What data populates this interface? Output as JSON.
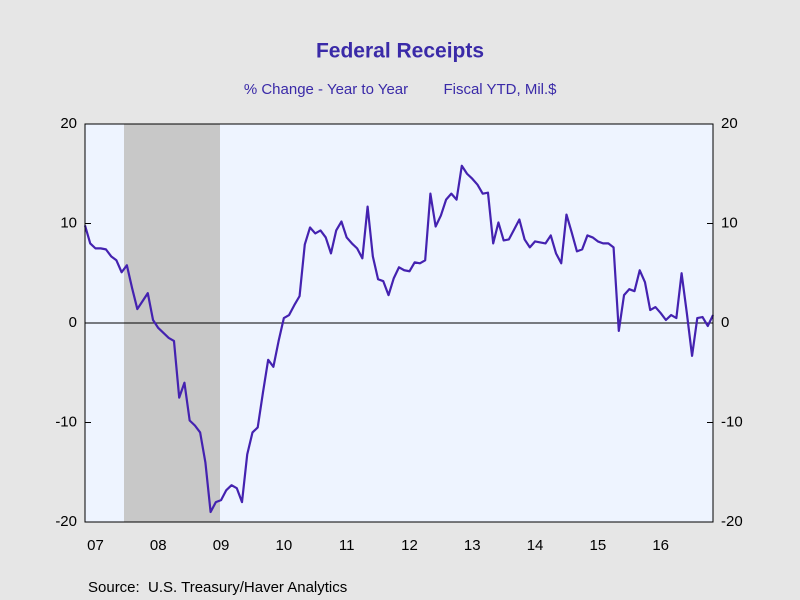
{
  "chart_data": {
    "type": "line",
    "title": "Federal Receipts",
    "subtitle": "% Change - Year to Year",
    "units": "Fiscal YTD, Mil.$",
    "source": "Source:  U.S. Treasury/Haver Analytics",
    "categories": [
      null,
      null,
      "07",
      null,
      null,
      null,
      null,
      null,
      null,
      null,
      null,
      null,
      null,
      null,
      "08",
      null,
      null,
      null,
      null,
      null,
      null,
      null,
      null,
      null,
      null,
      null,
      "09",
      null,
      null,
      null,
      null,
      null,
      null,
      null,
      null,
      null,
      null,
      null,
      "10",
      null,
      null,
      null,
      null,
      null,
      null,
      null,
      null,
      null,
      null,
      null,
      "11",
      null,
      null,
      null,
      null,
      null,
      null,
      null,
      null,
      null,
      null,
      null,
      "12",
      null,
      null,
      null,
      null,
      null,
      null,
      null,
      null,
      null,
      null,
      null,
      "13",
      null,
      null,
      null,
      null,
      null,
      null,
      null,
      null,
      null,
      null,
      null,
      "14",
      null,
      null,
      null,
      null,
      null,
      null,
      null,
      null,
      null,
      null,
      null,
      "15",
      null,
      null,
      null,
      null,
      null,
      null,
      null,
      null,
      null,
      null,
      null,
      "16",
      null,
      null,
      null,
      null,
      null,
      null,
      null,
      null,
      null,
      null
    ],
    "series": [
      {
        "color": "#4422b0",
        "values": [
          9.8,
          8.0,
          7.5,
          7.5,
          7.4,
          6.7,
          6.3,
          5.1,
          5.8,
          3.5,
          1.4,
          2.2,
          3.0,
          0.3,
          -0.5,
          -1.0,
          -1.5,
          -1.8,
          -7.5,
          -6.0,
          -9.8,
          -10.3,
          -11.0,
          -14.0,
          -19.0,
          -18.0,
          -17.8,
          -16.8,
          -16.3,
          -16.6,
          -18.0,
          -13.2,
          -11.0,
          -10.5,
          -7.0,
          -3.7,
          -4.4,
          -1.8,
          0.5,
          0.8,
          1.8,
          2.7,
          7.9,
          9.6,
          9.0,
          9.3,
          8.6,
          7.0,
          9.3,
          10.2,
          8.6,
          8.0,
          7.5,
          6.5,
          11.7,
          6.7,
          4.4,
          4.2,
          2.8,
          4.5,
          5.6,
          5.3,
          5.2,
          6.1,
          6.0,
          6.3,
          13.0,
          9.7,
          10.8,
          12.4,
          13.0,
          12.4,
          15.8,
          15.0,
          14.5,
          13.9,
          13.0,
          13.1,
          8.0,
          10.1,
          8.3,
          8.4,
          9.4,
          10.4,
          8.4,
          7.6,
          8.2,
          8.1,
          8.0,
          8.8,
          7.0,
          6.0,
          10.9,
          9.1,
          7.2,
          7.4,
          8.8,
          8.6,
          8.2,
          8.0,
          8.0,
          7.6,
          -0.8,
          2.8,
          3.4,
          3.2,
          5.3,
          4.1,
          1.3,
          1.6,
          1.0,
          0.3,
          0.8,
          0.5,
          5.0,
          1.0,
          -3.3,
          0.5,
          0.6,
          -0.3,
          0.8
        ]
      }
    ],
    "ylim": [
      -20,
      20
    ],
    "yticks": [
      -20,
      -10,
      0,
      10,
      20
    ]
  }
}
